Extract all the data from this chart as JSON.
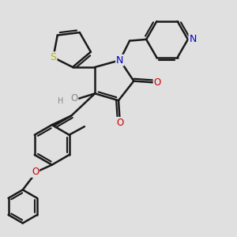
{
  "bg_color": "#e0e0e0",
  "bond_color": "#1a1a1a",
  "bond_width": 1.8,
  "dbo": 0.055,
  "atom_colors": {
    "S": "#b8b800",
    "N": "#0000cc",
    "O": "#cc0000",
    "OH": "#888888",
    "H": "#888888",
    "C": "#1a1a1a"
  },
  "figsize": [
    3.0,
    3.0
  ],
  "dpi": 100
}
